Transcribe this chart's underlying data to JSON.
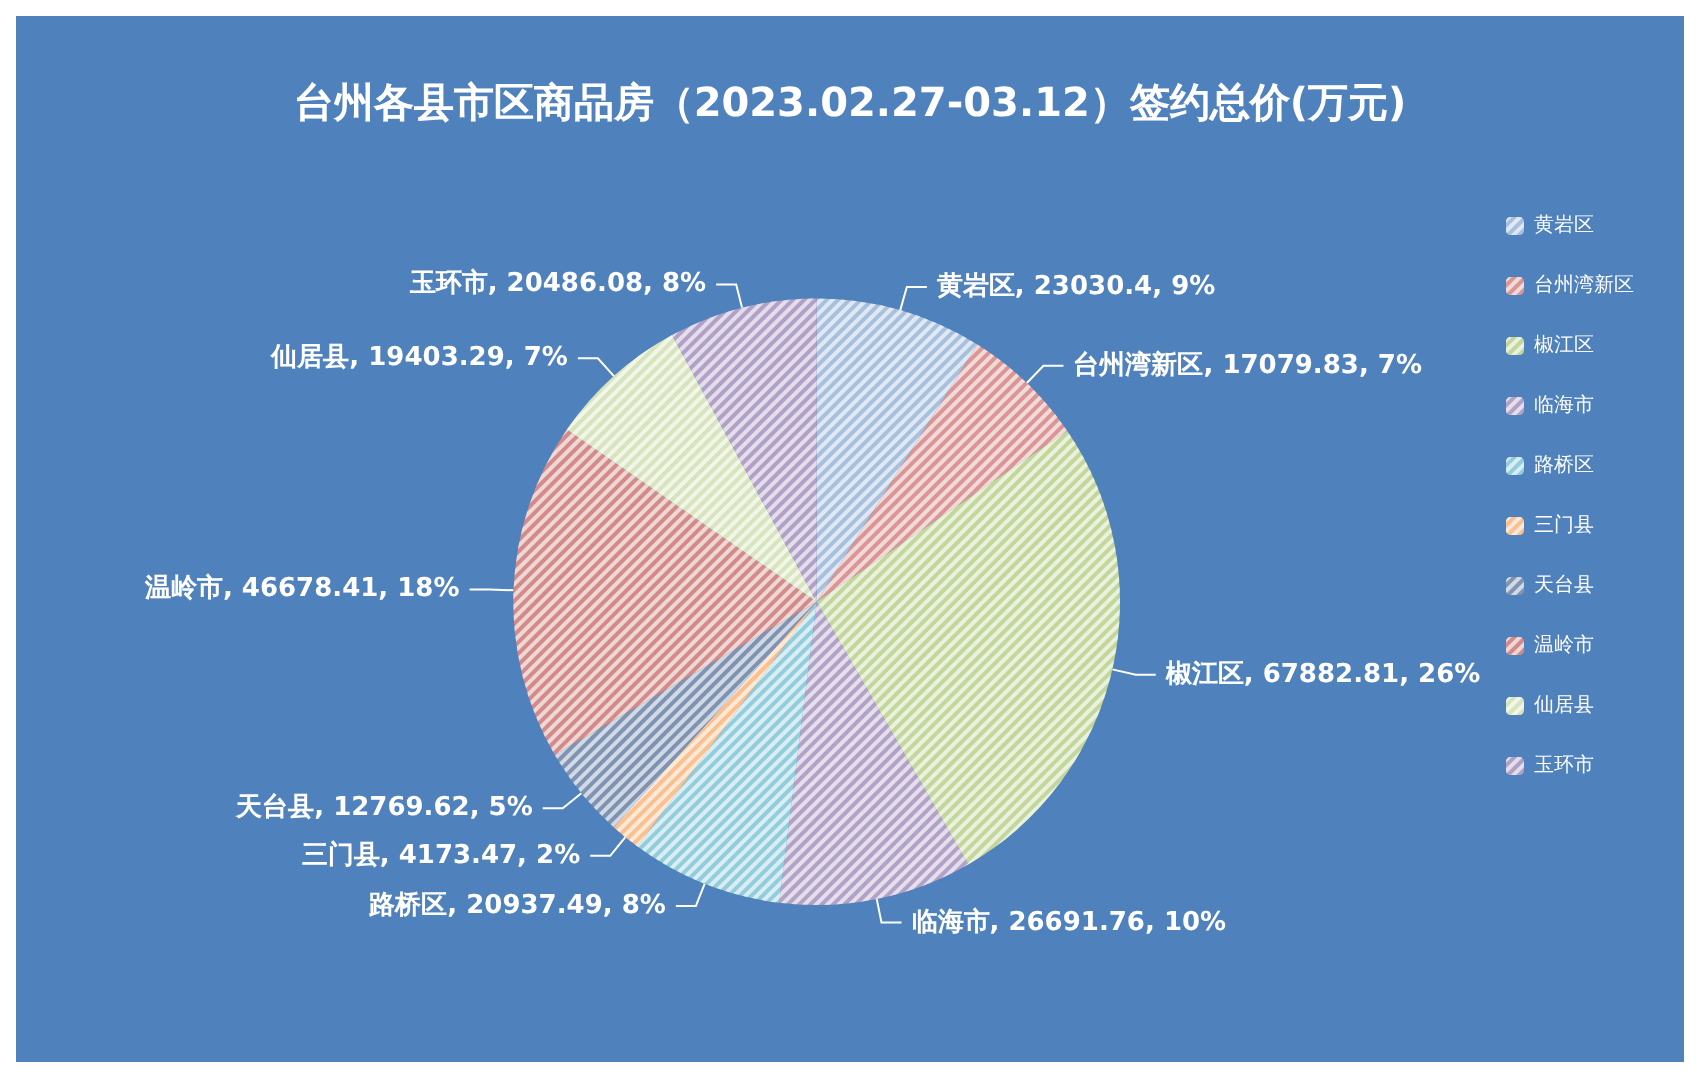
{
  "chart_data": {
    "type": "pie",
    "title": "台州各县市区商品房（2023.02.27-03.12）签约总价(万元)",
    "categories": [
      "黄岩区",
      "台州湾新区",
      "椒江区",
      "临海市",
      "路桥区",
      "三门县",
      "天台县",
      "温岭市",
      "仙居县",
      "玉环市"
    ],
    "values": [
      23030.4,
      17079.83,
      67882.81,
      26691.76,
      20937.49,
      4173.47,
      12769.62,
      46678.41,
      19403.29,
      20486.08
    ],
    "value_labels": [
      "黄岩区, 23030.4, 9%",
      "台州湾新区, 17079.83, 7%",
      "椒江区, 67882.81, 26%",
      "临海市, 26691.76, 10%",
      "路桥区, 20937.49, 8%",
      "三门县, 4173.47, 2%",
      "天台县, 12769.62, 5%",
      "温岭市, 46678.41, 18%",
      "仙居县, 19403.29, 7%",
      "玉环市, 20486.08, 8%"
    ],
    "colors": [
      "#a7c0de",
      "#d99694",
      "#c3d69b",
      "#b3a2c7",
      "#93cddd",
      "#fac090",
      "#7f93b2",
      "#d28b89",
      "#d7e4bd",
      "#b1a0c7"
    ],
    "legend": "right"
  }
}
